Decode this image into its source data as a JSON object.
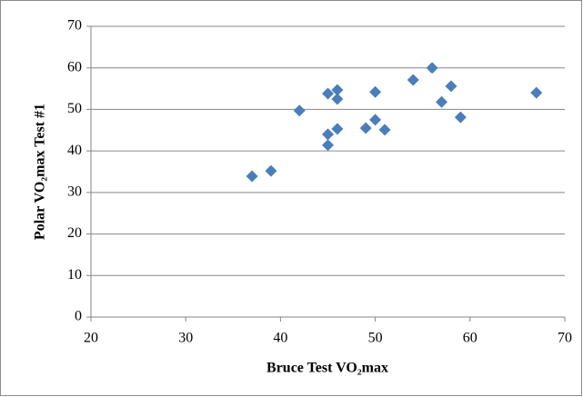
{
  "chart_data": {
    "type": "scatter",
    "x_label": "Bruce Test VO₂max",
    "y_label": "Polar VO₂max Test #1",
    "series": [
      {
        "name": "Polar VO₂max Test #1",
        "color": "#4a7ebb",
        "x": [
          37,
          39,
          42,
          45,
          45,
          45,
          46,
          46,
          46,
          49,
          50,
          50,
          51,
          54,
          56,
          57,
          58,
          59,
          67
        ],
        "values": [
          33.9,
          35.2,
          49.7,
          53.8,
          44,
          41.4,
          54.7,
          52.5,
          45.3,
          45.5,
          54.2,
          47.5,
          45.1,
          57.1,
          60,
          51.8,
          55.6,
          48.1,
          54
        ]
      }
    ],
    "xlim": [
      20,
      70
    ],
    "xticks": [
      20,
      30,
      40,
      50,
      60,
      70
    ],
    "ylim": [
      0,
      70
    ],
    "yticks": [
      0,
      10,
      20,
      30,
      40,
      50,
      60,
      70
    ],
    "grid": true
  }
}
